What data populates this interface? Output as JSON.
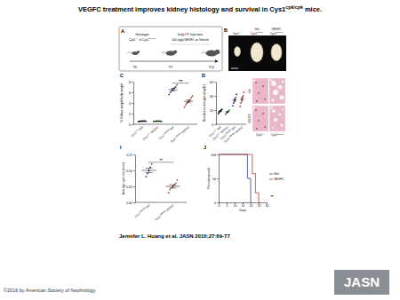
{
  "title": {
    "segments": [
      {
        "text": "VEGFC treatment improves kidney histology and survival in Cys1"
      },
      {
        "text": "cpk/cpk",
        "sup": true
      },
      {
        "text": " mice."
      }
    ]
  },
  "panel_A": {
    "letter": "A",
    "genotype_title": "Genotype",
    "genotype": {
      "segments": [
        {
          "text": "Cys1"
        },
        {
          "text": "+/+",
          "sup": true
        },
        {
          "text": " or Cys1"
        },
        {
          "text": "cpk/cpk",
          "sup": true
        }
      ]
    },
    "treatment": [
      "Daily I.P. Injections",
      "100 ng/g VEGFC or Vehicle"
    ],
    "timepoints": [
      "P0",
      "P7",
      "P14"
    ]
  },
  "panel_B": {
    "letter": "B",
    "labels": [
      {
        "genotype": {
          "segments": [
            {
              "text": "Cys1"
            },
            {
              "text": "+/+",
              "sup": true
            }
          ]
        }
      },
      {
        "treatment": "Veh",
        "genotype": {
          "segments": [
            {
              "text": "Cys1"
            },
            {
              "text": "cpk/cpk",
              "sup": true
            }
          ]
        }
      },
      {
        "treatment": "VEGFC",
        "genotype": {
          "segments": [
            {
              "text": "Cys1"
            },
            {
              "text": "cpk/cpk",
              "sup": true
            }
          ]
        }
      }
    ]
  },
  "panel_EH": {
    "letters": [
      "E",
      "G",
      "F",
      "H"
    ],
    "row_labels": [
      "Veh",
      "VEGFC"
    ],
    "col_labels": [
      {
        "segments": [
          {
            "text": "Cys1"
          },
          {
            "text": "+/+",
            "sup": true
          }
        ]
      },
      {
        "segments": [
          {
            "text": "Cys1"
          },
          {
            "text": "cpk/cpk",
            "sup": true
          }
        ]
      }
    ]
  },
  "chart_data": [
    {
      "type": "dot",
      "letter": "C",
      "y_label": "% Kidney weight/body weight",
      "categories": [
        {
          "segments": [
            {
              "text": "Cys1"
            },
            {
              "text": "+/+",
              "sup": true
            },
            {
              "text": " Veh"
            }
          ]
        },
        {
          "segments": [
            {
              "text": "Cys1"
            },
            {
              "text": "+/+",
              "sup": true
            },
            {
              "text": " VEGFC"
            }
          ]
        },
        {
          "segments": [
            {
              "text": "Cys1"
            },
            {
              "text": "cpk/cpk",
              "sup": true
            },
            {
              "text": " Veh"
            }
          ]
        },
        {
          "segments": [
            {
              "text": "Cys1"
            },
            {
              "text": "cpk/cpk",
              "sup": true
            },
            {
              "text": " VEGFC"
            }
          ]
        }
      ],
      "groups": [
        {
          "color": "#1a1a1a",
          "values": [
            0.5,
            0.55,
            0.6,
            0.6,
            0.65,
            0.55
          ],
          "mean": 0.58,
          "error": 0.02
        },
        {
          "color": "#3a8a3a",
          "values": [
            0.5,
            0.6,
            0.55,
            0.65,
            0.6,
            0.58,
            0.52
          ],
          "mean": 0.57,
          "error": 0.02
        },
        {
          "color": "#2b3f8f",
          "values": [
            5.6,
            6.0,
            6.3,
            6.6,
            6.8,
            7.0,
            7.4
          ],
          "mean": 6.5,
          "error": 0.23
        },
        {
          "color": "#c0392b",
          "values": [
            3.2,
            3.6,
            3.9,
            4.2,
            4.4,
            4.6,
            5.0,
            5.3
          ],
          "mean": 4.3,
          "error": 0.25
        }
      ],
      "ylim": [
        0,
        8
      ],
      "yticks": [
        0,
        2,
        4,
        6,
        8
      ],
      "annotations": [
        {
          "text": "***",
          "between": [
            2,
            3
          ]
        }
      ]
    },
    {
      "type": "dot",
      "letter": "D",
      "y_label": "Blood urea nitrogen (mg/dL)",
      "categories": [
        {
          "segments": [
            {
              "text": "Cys1"
            },
            {
              "text": "+/+",
              "sup": true
            },
            {
              "text": " Veh"
            }
          ]
        },
        {
          "segments": [
            {
              "text": "Cys1"
            },
            {
              "text": "+/+",
              "sup": true
            },
            {
              "text": " VEGFC"
            }
          ]
        },
        {
          "segments": [
            {
              "text": "Cys1"
            },
            {
              "text": "cpk/cpk",
              "sup": true
            },
            {
              "text": " Veh"
            }
          ]
        },
        {
          "segments": [
            {
              "text": "Cys1"
            },
            {
              "text": "cpk/cpk",
              "sup": true
            },
            {
              "text": " VEGFC"
            }
          ]
        }
      ],
      "groups": [
        {
          "color": "#1a1a1a",
          "values": [
            15,
            17,
            18,
            19,
            20,
            21
          ],
          "mean": 18.3,
          "error": 0.9
        },
        {
          "color": "#3a8a3a",
          "values": [
            14,
            16,
            17,
            18,
            19,
            20
          ],
          "mean": 17.3,
          "error": 0.9
        },
        {
          "color": "#2b3f8f",
          "values": [
            26,
            30,
            33,
            35,
            38,
            42
          ],
          "mean": 34,
          "error": 2.3
        },
        {
          "color": "#c0392b",
          "values": [
            25,
            30,
            34,
            37,
            40,
            45
          ],
          "mean": 35.2,
          "error": 2.9
        }
      ],
      "ylim": [
        0,
        60
      ],
      "yticks": [
        0,
        20,
        40,
        60
      ]
    },
    {
      "type": "dot",
      "letter": "I",
      "y_label": "Average cyst size (mm²)",
      "categories": [
        {
          "segments": [
            {
              "text": "Cys1"
            },
            {
              "text": "cpk/cpk",
              "sup": true
            },
            {
              "text": " Veh"
            }
          ]
        },
        {
          "segments": [
            {
              "text": "Cys1"
            },
            {
              "text": "cpk/cpk",
              "sup": true
            },
            {
              "text": " VEGFC"
            }
          ]
        }
      ],
      "groups": [
        {
          "color": "#2b3f8f",
          "values": [
            0.08,
            0.09,
            0.1,
            0.11,
            0.12
          ],
          "mean": 0.1,
          "error": 0.007
        },
        {
          "color": "#c0392b",
          "values": [
            0.03,
            0.04,
            0.045,
            0.05,
            0.055,
            0.06,
            0.07
          ],
          "mean": 0.05,
          "error": 0.005
        }
      ],
      "ylim": [
        0,
        0.15
      ],
      "yticks": [
        {
          "value": 0,
          "label": "0.00"
        },
        {
          "value": 0.05,
          "label": "0.05"
        },
        {
          "value": 0.1,
          "label": "0.10"
        },
        {
          "value": 0.15,
          "label": "0.15"
        }
      ],
      "annotations": [
        {
          "text": "**",
          "between": [
            0,
            1
          ]
        }
      ]
    },
    {
      "type": "line",
      "letter": "J",
      "x_label": "Days",
      "y_label": "Percent survival",
      "xlim": [
        0,
        30
      ],
      "xticks": [
        0,
        5,
        10,
        15,
        20,
        25,
        30
      ],
      "ylim": [
        0,
        100
      ],
      "yticks": [
        0,
        50,
        100
      ],
      "legend": "right",
      "series": [
        {
          "name": "Veh",
          "color": "#2b3f8f",
          "line_style": "step",
          "x": [
            0,
            18,
            20
          ],
          "values": [
            100,
            50,
            0
          ]
        },
        {
          "name": "VEGFC",
          "color": "#c0392b",
          "line_style": "step",
          "x": [
            0,
            21,
            23,
            25
          ],
          "values": [
            100,
            60,
            20,
            0
          ]
        }
      ],
      "annotations": [
        {
          "text": "**"
        }
      ]
    }
  ],
  "citation": "Jennifer L. Huang et al. JASN 2016;27:69-77",
  "copyright": "©2016 by American Society of Nephrology",
  "logo": "JASN"
}
